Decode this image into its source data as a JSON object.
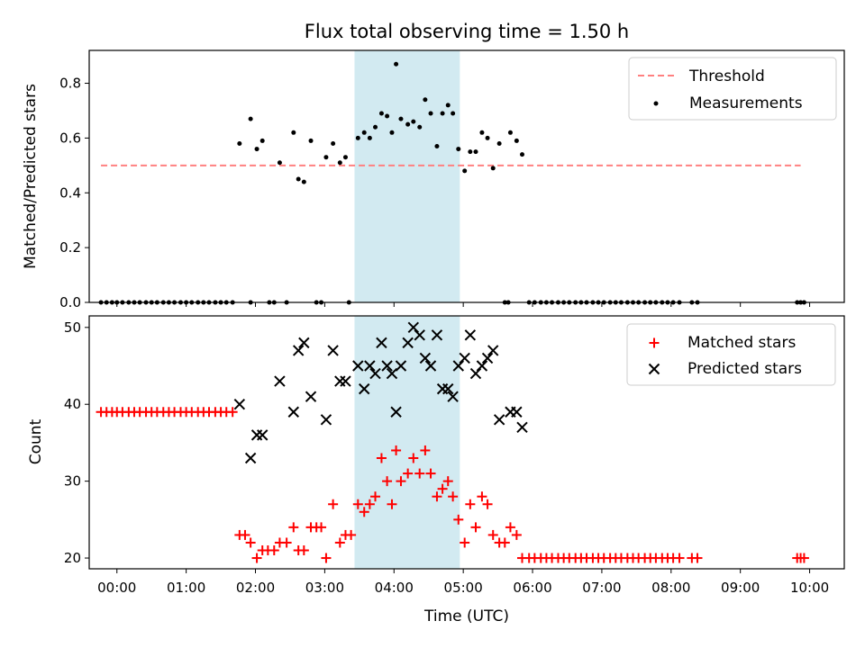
{
  "title": "Flux total observing time = 1.50 h",
  "colors": {
    "threshold": "#ff8080",
    "measurement": "#000000",
    "matched": "#ff0000",
    "predicted": "#000000",
    "span": "#add8e6"
  },
  "chart_data": [
    {
      "type": "scatter",
      "panel": "top",
      "ylabel": "Matched/Predicted stars",
      "xlim": [
        -0.4,
        10.5
      ],
      "ylim": [
        0,
        0.92
      ],
      "yticks": [
        "0.0",
        "0.2",
        "0.4",
        "0.6",
        "0.8"
      ],
      "shaded_span": [
        3.43,
        4.95
      ],
      "legend": {
        "position": "top-right",
        "entries": [
          "Threshold",
          "Measurements"
        ]
      },
      "threshold": {
        "name": "Threshold",
        "y": 0.5,
        "x": [
          -0.23,
          9.87
        ]
      },
      "measurements": {
        "name": "Measurements",
        "x": [
          1.77,
          1.93,
          2.02,
          2.1,
          2.35,
          2.55,
          2.62,
          2.7,
          2.8,
          3.02,
          3.12,
          3.22,
          3.3,
          3.48,
          3.57,
          3.65,
          3.73,
          3.82,
          3.9,
          3.97,
          4.03,
          4.1,
          4.2,
          4.28,
          4.37,
          4.45,
          4.53,
          4.62,
          4.7,
          4.78,
          4.85,
          4.93,
          5.02,
          5.1,
          5.18,
          5.27,
          5.35,
          5.43,
          5.52,
          5.6,
          5.68,
          5.77,
          5.85
        ],
        "y": [
          0.58,
          0.67,
          0.56,
          0.59,
          0.51,
          0.62,
          0.45,
          0.44,
          0.59,
          0.53,
          0.58,
          0.51,
          0.53,
          0.6,
          0.62,
          0.6,
          0.64,
          0.69,
          0.68,
          0.62,
          0.87,
          0.67,
          0.65,
          0.66,
          0.64,
          0.74,
          0.69,
          0.57,
          0.69,
          0.72,
          0.69,
          0.56,
          0.48,
          0.55,
          0.55,
          0.62,
          0.6,
          0.49,
          0.58,
          0.0,
          0.62,
          0.59,
          0.54
        ]
      },
      "zeros_x": [
        -0.23,
        -0.15,
        -0.07,
        0.0,
        0.08,
        0.17,
        0.25,
        0.33,
        0.42,
        0.5,
        0.58,
        0.67,
        0.75,
        0.83,
        0.92,
        1.0,
        1.08,
        1.17,
        1.25,
        1.33,
        1.42,
        1.5,
        1.58,
        1.67,
        1.93,
        2.2,
        2.27,
        2.45,
        2.88,
        2.95,
        3.35,
        5.65,
        5.95,
        6.03,
        6.12,
        6.2,
        6.28,
        6.37,
        6.45,
        6.53,
        6.62,
        6.7,
        6.78,
        6.87,
        6.95,
        7.03,
        7.12,
        7.2,
        7.28,
        7.37,
        7.45,
        7.53,
        7.62,
        7.7,
        7.78,
        7.87,
        7.95,
        8.03,
        8.12,
        8.3,
        8.38,
        9.82,
        9.87,
        9.92
      ]
    },
    {
      "type": "scatter",
      "panel": "bottom",
      "xlabel": "Time (UTC)",
      "ylabel": "Count",
      "xlim": [
        -0.4,
        10.5
      ],
      "ylim": [
        18.6,
        51.5
      ],
      "xticks": [
        {
          "v": 0,
          "l": "00:00"
        },
        {
          "v": 1,
          "l": "01:00"
        },
        {
          "v": 2,
          "l": "02:00"
        },
        {
          "v": 3,
          "l": "03:00"
        },
        {
          "v": 4,
          "l": "04:00"
        },
        {
          "v": 5,
          "l": "05:00"
        },
        {
          "v": 6,
          "l": "06:00"
        },
        {
          "v": 7,
          "l": "07:00"
        },
        {
          "v": 8,
          "l": "08:00"
        },
        {
          "v": 9,
          "l": "09:00"
        },
        {
          "v": 10,
          "l": "10:00"
        }
      ],
      "yticks": [
        {
          "v": 20,
          "l": "20"
        },
        {
          "v": 30,
          "l": "30"
        },
        {
          "v": 40,
          "l": "40"
        },
        {
          "v": 50,
          "l": "50"
        }
      ],
      "shaded_span": [
        3.43,
        4.95
      ],
      "legend": {
        "position": "top-right",
        "entries": [
          "Matched stars",
          "Predicted stars"
        ]
      },
      "matched": {
        "name": "Matched stars",
        "x": [
          -0.23,
          -0.15,
          -0.07,
          0.0,
          0.08,
          0.17,
          0.25,
          0.33,
          0.42,
          0.5,
          0.58,
          0.67,
          0.75,
          0.83,
          0.92,
          1.0,
          1.08,
          1.17,
          1.25,
          1.33,
          1.42,
          1.5,
          1.58,
          1.67,
          1.77,
          1.85,
          1.93,
          2.02,
          2.1,
          2.18,
          2.27,
          2.35,
          2.45,
          2.55,
          2.62,
          2.7,
          2.8,
          2.88,
          2.95,
          3.02,
          3.12,
          3.22,
          3.3,
          3.38,
          3.48,
          3.57,
          3.65,
          3.73,
          3.82,
          3.9,
          3.97,
          4.03,
          4.1,
          4.2,
          4.28,
          4.37,
          4.45,
          4.53,
          4.62,
          4.7,
          4.78,
          4.85,
          4.93,
          5.02,
          5.1,
          5.18,
          5.27,
          5.35,
          5.43,
          5.52,
          5.6,
          5.68,
          5.77,
          5.85,
          5.95,
          6.03,
          6.12,
          6.2,
          6.28,
          6.37,
          6.45,
          6.53,
          6.62,
          6.7,
          6.78,
          6.87,
          6.95,
          7.03,
          7.12,
          7.2,
          7.28,
          7.37,
          7.45,
          7.53,
          7.62,
          7.7,
          7.78,
          7.87,
          7.95,
          8.03,
          8.12,
          8.3,
          8.38,
          9.82,
          9.87,
          9.92
        ],
        "y": [
          39,
          39,
          39,
          39,
          39,
          39,
          39,
          39,
          39,
          39,
          39,
          39,
          39,
          39,
          39,
          39,
          39,
          39,
          39,
          39,
          39,
          39,
          39,
          39,
          23,
          23,
          22,
          20,
          21,
          21,
          21,
          22,
          22,
          24,
          21,
          21,
          24,
          24,
          24,
          20,
          27,
          22,
          23,
          23,
          27,
          26,
          27,
          28,
          33,
          30,
          27,
          34,
          30,
          31,
          33,
          31,
          34,
          31,
          28,
          29,
          30,
          28,
          25,
          22,
          27,
          24,
          28,
          27,
          23,
          22,
          22,
          24,
          23,
          20,
          20,
          20,
          20,
          20,
          20,
          20,
          20,
          20,
          20,
          20,
          20,
          20,
          20,
          20,
          20,
          20,
          20,
          20,
          20,
          20,
          20,
          20,
          20,
          20,
          20,
          20,
          20,
          20,
          20,
          20,
          20,
          20
        ]
      },
      "predicted": {
        "name": "Predicted stars",
        "x": [
          1.77,
          1.93,
          2.02,
          2.1,
          2.35,
          2.55,
          2.62,
          2.7,
          2.8,
          3.02,
          3.12,
          3.22,
          3.3,
          3.48,
          3.57,
          3.65,
          3.73,
          3.82,
          3.9,
          3.97,
          4.03,
          4.1,
          4.2,
          4.28,
          4.37,
          4.45,
          4.53,
          4.62,
          4.7,
          4.78,
          4.85,
          4.93,
          5.02,
          5.1,
          5.18,
          5.27,
          5.35,
          5.43,
          5.52,
          5.68,
          5.77,
          5.85
        ],
        "y": [
          40,
          33,
          36,
          36,
          43,
          39,
          47,
          48,
          41,
          38,
          47,
          43,
          43,
          45,
          42,
          45,
          44,
          48,
          45,
          44,
          39,
          45,
          48,
          50,
          49,
          46,
          45,
          49,
          42,
          42,
          41,
          45,
          46,
          49,
          44,
          45,
          46,
          47,
          38,
          39,
          39,
          37
        ]
      }
    }
  ]
}
